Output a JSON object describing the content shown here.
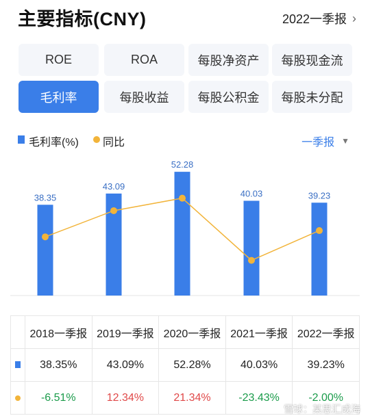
{
  "header": {
    "title": "主要指标(CNY)",
    "period": "2022一季报"
  },
  "tabs": [
    {
      "label": "ROE",
      "active": false
    },
    {
      "label": "ROA",
      "active": false
    },
    {
      "label": "每股净资产",
      "active": false
    },
    {
      "label": "每股现金流",
      "active": false
    },
    {
      "label": "毛利率",
      "active": true
    },
    {
      "label": "每股收益",
      "active": false
    },
    {
      "label": "每股公积金",
      "active": false
    },
    {
      "label": "每股未分配",
      "active": false
    }
  ],
  "legend": {
    "bar_label": "毛利率(%)",
    "line_label": "同比",
    "dropdown": "一季报"
  },
  "colors": {
    "accent": "#3a7ee8",
    "line": "#f2b43a",
    "positive": "#e04848",
    "negative": "#1a9b4a"
  },
  "chart_data": {
    "type": "bar",
    "categories": [
      "2018一季报",
      "2019一季报",
      "2020一季报",
      "2021一季报",
      "2022一季报"
    ],
    "series": [
      {
        "name": "毛利率(%)",
        "type": "bar",
        "values": [
          38.35,
          43.09,
          52.28,
          40.03,
          39.23
        ],
        "labels": [
          "38.35",
          "43.09",
          "52.28",
          "40.03",
          "39.23"
        ]
      },
      {
        "name": "同比",
        "type": "line",
        "values": [
          -6.51,
          12.34,
          21.34,
          -23.43,
          -2.0
        ]
      }
    ],
    "grid": false
  },
  "table": {
    "headers": [
      "2018一季报",
      "2019一季报",
      "2020一季报",
      "2021一季报",
      "2022一季报"
    ],
    "bar_row": [
      "38.35%",
      "43.09%",
      "52.28%",
      "40.03%",
      "39.23%"
    ],
    "yoy_row": [
      "-6.51%",
      "12.34%",
      "21.34%",
      "-23.43%",
      "-2.00%"
    ]
  },
  "watermark": "雪球：某思汇成海"
}
